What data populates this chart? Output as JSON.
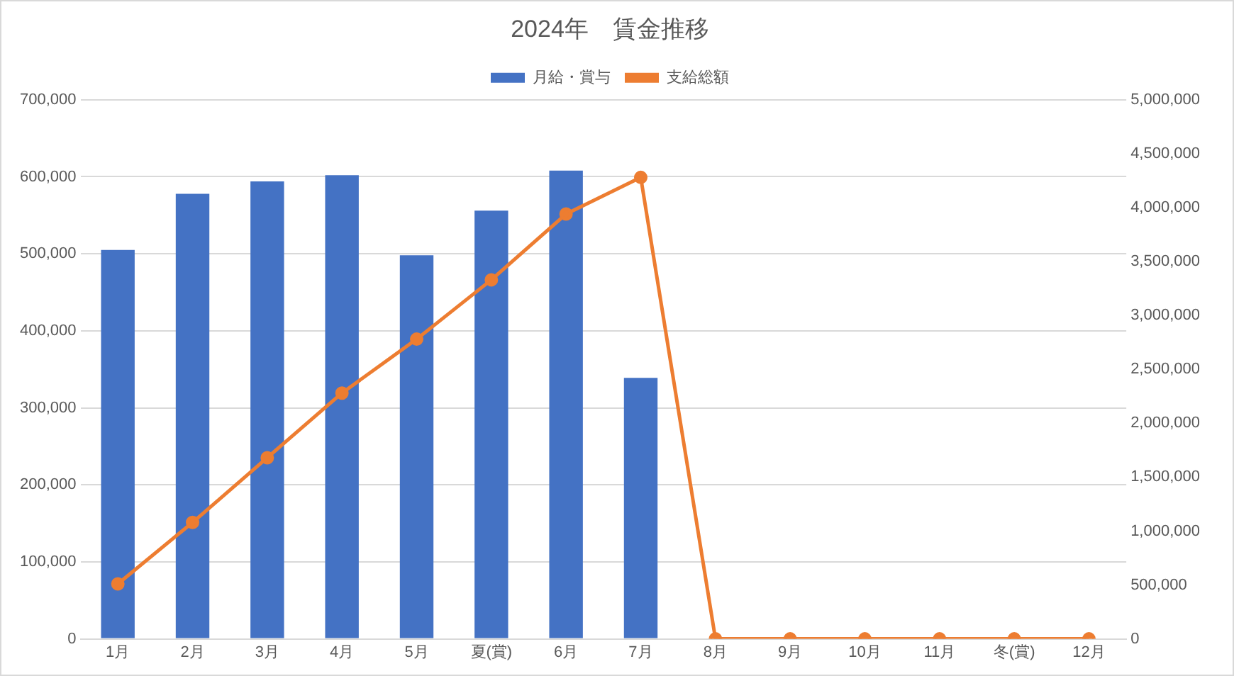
{
  "chart_data": {
    "type": "bar",
    "title": "2024年　賃金推移",
    "categories": [
      "1月",
      "2月",
      "3月",
      "4月",
      "5月",
      "夏(賞)",
      "6月",
      "7月",
      "8月",
      "9月",
      "10月",
      "11月",
      "冬(賞)",
      "12月"
    ],
    "series": [
      {
        "name": "月給・賞与",
        "color": "#4472c4",
        "values": [
          505000,
          578000,
          594000,
          602000,
          498000,
          556000,
          608000,
          339000,
          0,
          0,
          0,
          0,
          0,
          0
        ]
      },
      {
        "name": "支給総額",
        "type": "line",
        "axis": "y2",
        "color": "#ed7d31",
        "values": [
          510000,
          1080000,
          1680000,
          2280000,
          2780000,
          3330000,
          3940000,
          4280000,
          0,
          0,
          0,
          0,
          0,
          0
        ]
      }
    ],
    "ylim": [
      0,
      700000
    ],
    "yticks": [
      0,
      {
        "value": 100000,
        "label": "100,000"
      },
      {
        "value": 200000,
        "label": "200,000"
      },
      {
        "value": 300000,
        "label": "300,000"
      },
      {
        "value": 400000,
        "label": "400,000"
      },
      {
        "value": 500000,
        "label": "500,000"
      },
      {
        "value": 600000,
        "label": "600,000"
      },
      {
        "value": 700000,
        "label": "700,000"
      }
    ],
    "y2lim": [
      0,
      5000000
    ],
    "y2ticks": [
      0,
      {
        "value": 500000,
        "label": "500,000"
      },
      {
        "value": 1000000,
        "label": "1,000,000"
      },
      {
        "value": 1500000,
        "label": "1,500,000"
      },
      {
        "value": 2000000,
        "label": "2,000,000"
      },
      {
        "value": 2500000,
        "label": "2,500,000"
      },
      {
        "value": 3000000,
        "label": "3,000,000"
      },
      {
        "value": 3500000,
        "label": "3,500,000"
      },
      {
        "value": 4000000,
        "label": "4,000,000"
      },
      {
        "value": 4500000,
        "label": "4,500,000"
      },
      {
        "value": 5000000,
        "label": "5,000,000"
      }
    ],
    "grid": "y",
    "legend": "top",
    "marker": "circle",
    "line_style": "solid"
  }
}
